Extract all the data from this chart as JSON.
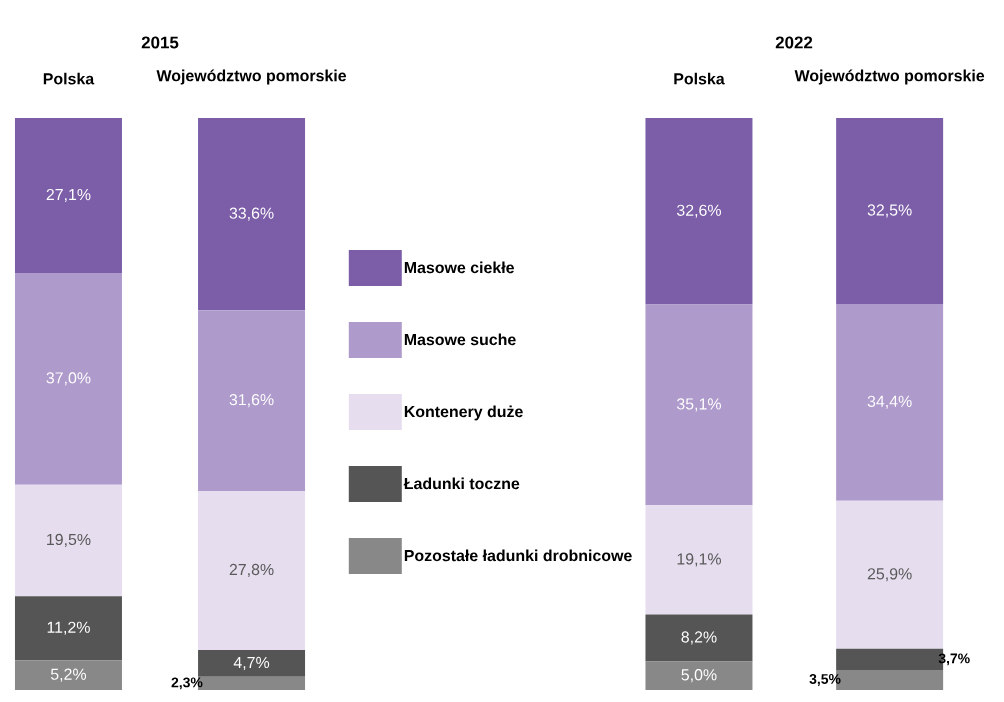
{
  "chart_data": [
    {
      "type": "bar",
      "title": "2015",
      "stacked": true,
      "legend": "right",
      "categories": [
        "Polska",
        "Województwo pomorskie"
      ],
      "series": [
        {
          "name": "Pozostałe ładunki drobnicowe",
          "color": "#888888",
          "values": [
            5.2,
            2.3
          ],
          "value_labels": [
            "5,2%",
            "2,3%"
          ]
        },
        {
          "name": "Ładunki toczne",
          "color": "#555555",
          "values": [
            11.2,
            4.7
          ],
          "value_labels": [
            "11,2%",
            "4,7%"
          ]
        },
        {
          "name": "Kontenery duże",
          "color": "#e6ddef",
          "values": [
            19.5,
            27.8
          ],
          "value_labels": [
            "19,5%",
            "27,8%"
          ]
        },
        {
          "name": "Masowe suche",
          "color": "#ae9acb",
          "values": [
            37.0,
            31.6
          ],
          "value_labels": [
            "37,0%",
            "31,6%"
          ]
        },
        {
          "name": "Masowe ciekłe",
          "color": "#7b5ea7",
          "values": [
            27.1,
            33.6
          ],
          "value_labels": [
            "27,1%",
            "33,6%"
          ]
        }
      ]
    },
    {
      "type": "bar",
      "title": "2022",
      "stacked": true,
      "categories": [
        "Polska",
        "Województwo pomorskie"
      ],
      "series": [
        {
          "color": "#888888",
          "values": [
            5.0,
            3.5
          ],
          "value_labels": [
            "5,0%",
            "3,5%"
          ]
        },
        {
          "color": "#555555",
          "values": [
            8.2,
            3.7
          ],
          "value_labels": [
            "8,2%",
            "3,7%"
          ]
        },
        {
          "color": "#e6ddef",
          "values": [
            19.1,
            25.9
          ],
          "value_labels": [
            "19,1%",
            "25,9%"
          ]
        },
        {
          "color": "#ae9acb",
          "values": [
            35.1,
            34.4
          ],
          "value_labels": [
            "35,1%",
            "34,4%"
          ]
        },
        {
          "color": "#7b5ea7",
          "values": [
            32.6,
            32.5
          ],
          "value_labels": [
            "32,6%",
            "32,5%"
          ]
        }
      ]
    }
  ]
}
